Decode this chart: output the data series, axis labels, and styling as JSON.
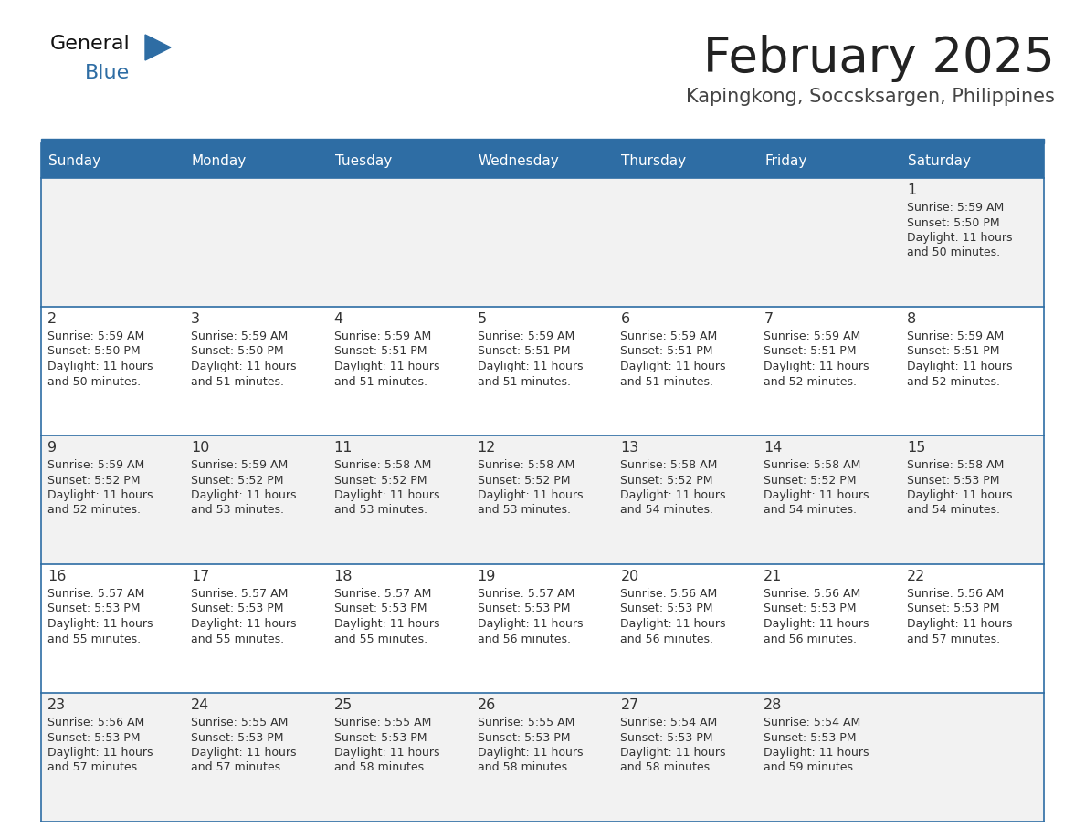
{
  "title": "February 2025",
  "subtitle": "Kapingkong, Soccsksargen, Philippines",
  "days_of_week": [
    "Sunday",
    "Monday",
    "Tuesday",
    "Wednesday",
    "Thursday",
    "Friday",
    "Saturday"
  ],
  "header_bg_color": "#2E6DA4",
  "header_text_color": "#FFFFFF",
  "cell_bg_color_odd": "#F2F2F2",
  "cell_bg_color_even": "#FFFFFF",
  "grid_line_color": "#2E6DA4",
  "day_number_color": "#333333",
  "cell_text_color": "#333333",
  "title_color": "#222222",
  "subtitle_color": "#444444",
  "logo_general_color": "#111111",
  "logo_blue_color": "#2E6DA4",
  "calendar_data": [
    [
      null,
      null,
      null,
      null,
      null,
      null,
      {
        "day": 1,
        "sunrise": "5:59 AM",
        "sunset": "5:50 PM",
        "daylight": "11 hours\nand 50 minutes."
      }
    ],
    [
      {
        "day": 2,
        "sunrise": "5:59 AM",
        "sunset": "5:50 PM",
        "daylight": "11 hours\nand 50 minutes."
      },
      {
        "day": 3,
        "sunrise": "5:59 AM",
        "sunset": "5:50 PM",
        "daylight": "11 hours\nand 51 minutes."
      },
      {
        "day": 4,
        "sunrise": "5:59 AM",
        "sunset": "5:51 PM",
        "daylight": "11 hours\nand 51 minutes."
      },
      {
        "day": 5,
        "sunrise": "5:59 AM",
        "sunset": "5:51 PM",
        "daylight": "11 hours\nand 51 minutes."
      },
      {
        "day": 6,
        "sunrise": "5:59 AM",
        "sunset": "5:51 PM",
        "daylight": "11 hours\nand 51 minutes."
      },
      {
        "day": 7,
        "sunrise": "5:59 AM",
        "sunset": "5:51 PM",
        "daylight": "11 hours\nand 52 minutes."
      },
      {
        "day": 8,
        "sunrise": "5:59 AM",
        "sunset": "5:51 PM",
        "daylight": "11 hours\nand 52 minutes."
      }
    ],
    [
      {
        "day": 9,
        "sunrise": "5:59 AM",
        "sunset": "5:52 PM",
        "daylight": "11 hours\nand 52 minutes."
      },
      {
        "day": 10,
        "sunrise": "5:59 AM",
        "sunset": "5:52 PM",
        "daylight": "11 hours\nand 53 minutes."
      },
      {
        "day": 11,
        "sunrise": "5:58 AM",
        "sunset": "5:52 PM",
        "daylight": "11 hours\nand 53 minutes."
      },
      {
        "day": 12,
        "sunrise": "5:58 AM",
        "sunset": "5:52 PM",
        "daylight": "11 hours\nand 53 minutes."
      },
      {
        "day": 13,
        "sunrise": "5:58 AM",
        "sunset": "5:52 PM",
        "daylight": "11 hours\nand 54 minutes."
      },
      {
        "day": 14,
        "sunrise": "5:58 AM",
        "sunset": "5:52 PM",
        "daylight": "11 hours\nand 54 minutes."
      },
      {
        "day": 15,
        "sunrise": "5:58 AM",
        "sunset": "5:53 PM",
        "daylight": "11 hours\nand 54 minutes."
      }
    ],
    [
      {
        "day": 16,
        "sunrise": "5:57 AM",
        "sunset": "5:53 PM",
        "daylight": "11 hours\nand 55 minutes."
      },
      {
        "day": 17,
        "sunrise": "5:57 AM",
        "sunset": "5:53 PM",
        "daylight": "11 hours\nand 55 minutes."
      },
      {
        "day": 18,
        "sunrise": "5:57 AM",
        "sunset": "5:53 PM",
        "daylight": "11 hours\nand 55 minutes."
      },
      {
        "day": 19,
        "sunrise": "5:57 AM",
        "sunset": "5:53 PM",
        "daylight": "11 hours\nand 56 minutes."
      },
      {
        "day": 20,
        "sunrise": "5:56 AM",
        "sunset": "5:53 PM",
        "daylight": "11 hours\nand 56 minutes."
      },
      {
        "day": 21,
        "sunrise": "5:56 AM",
        "sunset": "5:53 PM",
        "daylight": "11 hours\nand 56 minutes."
      },
      {
        "day": 22,
        "sunrise": "5:56 AM",
        "sunset": "5:53 PM",
        "daylight": "11 hours\nand 57 minutes."
      }
    ],
    [
      {
        "day": 23,
        "sunrise": "5:56 AM",
        "sunset": "5:53 PM",
        "daylight": "11 hours\nand 57 minutes."
      },
      {
        "day": 24,
        "sunrise": "5:55 AM",
        "sunset": "5:53 PM",
        "daylight": "11 hours\nand 57 minutes."
      },
      {
        "day": 25,
        "sunrise": "5:55 AM",
        "sunset": "5:53 PM",
        "daylight": "11 hours\nand 58 minutes."
      },
      {
        "day": 26,
        "sunrise": "5:55 AM",
        "sunset": "5:53 PM",
        "daylight": "11 hours\nand 58 minutes."
      },
      {
        "day": 27,
        "sunrise": "5:54 AM",
        "sunset": "5:53 PM",
        "daylight": "11 hours\nand 58 minutes."
      },
      {
        "day": 28,
        "sunrise": "5:54 AM",
        "sunset": "5:53 PM",
        "daylight": "11 hours\nand 59 minutes."
      },
      null
    ]
  ]
}
